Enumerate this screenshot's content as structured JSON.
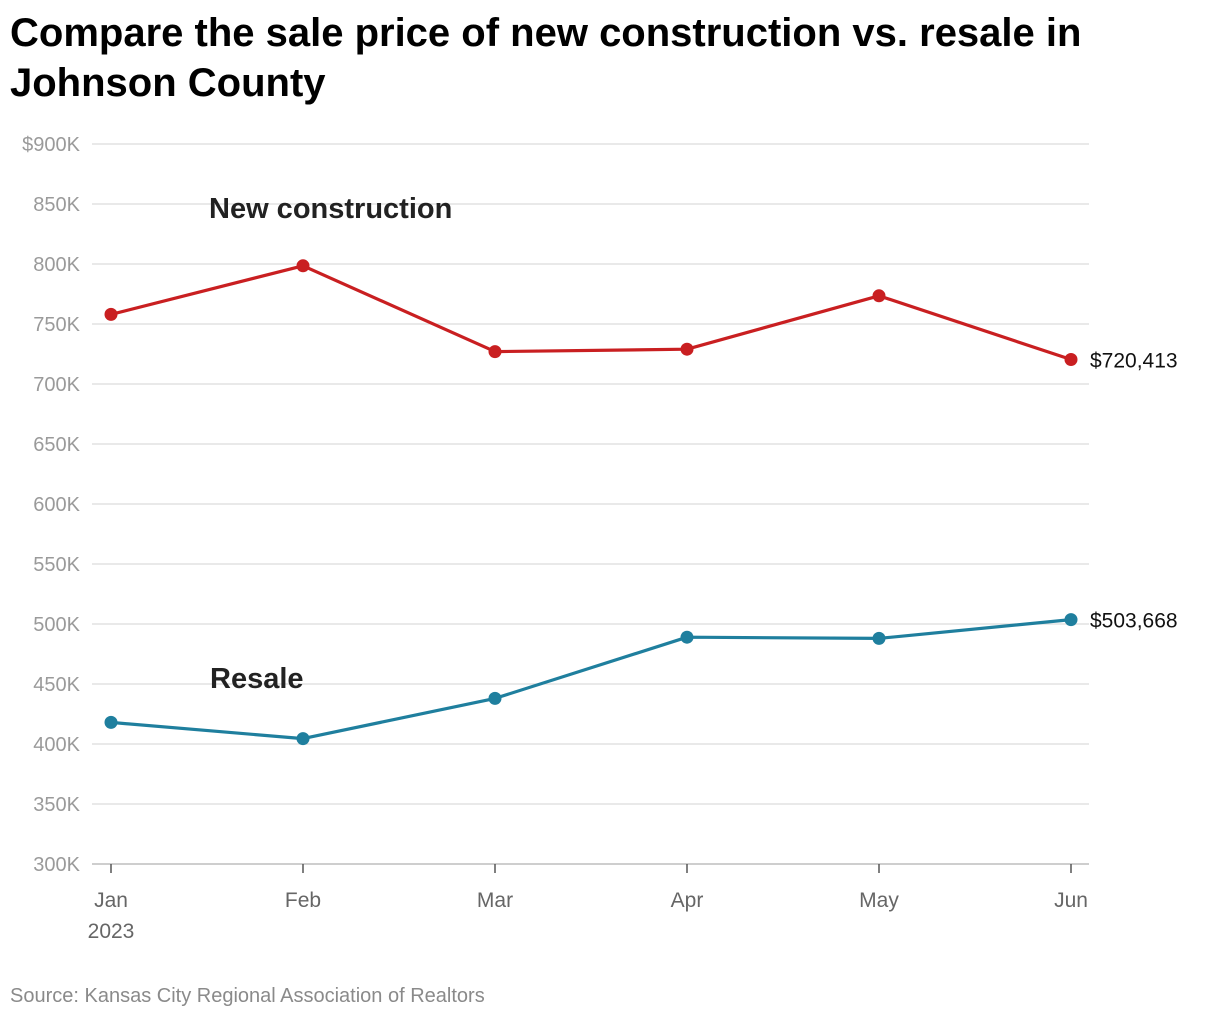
{
  "chart_data": {
    "type": "line",
    "title": "Compare the sale price of new construction vs. resale in Johnson County",
    "categories": [
      "Jan",
      "Feb",
      "Mar",
      "Apr",
      "May",
      "Jun"
    ],
    "x_sublabel": "2023",
    "y_ticks": [
      {
        "value": 900000,
        "label": "$900K"
      },
      {
        "value": 850000,
        "label": "850K"
      },
      {
        "value": 800000,
        "label": "800K"
      },
      {
        "value": 750000,
        "label": "750K"
      },
      {
        "value": 700000,
        "label": "700K"
      },
      {
        "value": 650000,
        "label": "650K"
      },
      {
        "value": 600000,
        "label": "600K"
      },
      {
        "value": 550000,
        "label": "550K"
      },
      {
        "value": 500000,
        "label": "500K"
      },
      {
        "value": 450000,
        "label": "450K"
      },
      {
        "value": 400000,
        "label": "400K"
      },
      {
        "value": 350000,
        "label": "350K"
      },
      {
        "value": 300000,
        "label": "300K"
      }
    ],
    "ylim": [
      300000,
      900000
    ],
    "grid": true,
    "series": [
      {
        "name": "New construction",
        "color": "#c91f21",
        "values": [
          758000,
          798500,
          727000,
          729000,
          773500,
          720413
        ],
        "end_label": "$720,413"
      },
      {
        "name": "Resale",
        "color": "#1f7f9e",
        "values": [
          418000,
          404500,
          438000,
          489000,
          488000,
          503668
        ],
        "end_label": "$503,668"
      }
    ],
    "source": "Source: Kansas City Regional Association of Realtors"
  }
}
